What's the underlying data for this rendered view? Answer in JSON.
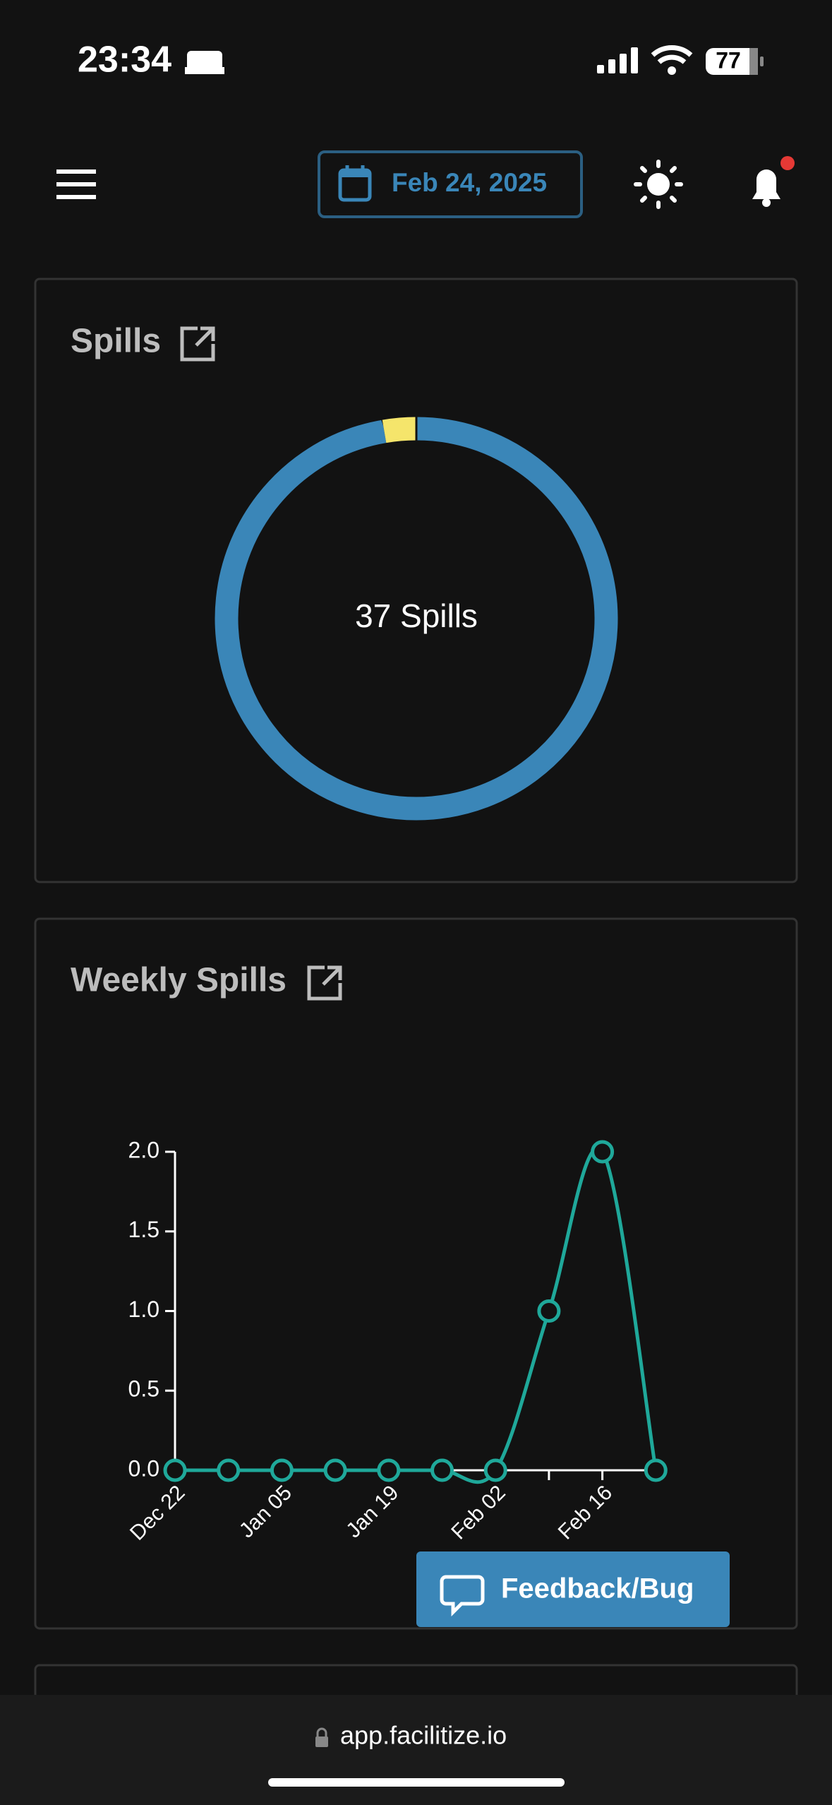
{
  "status_bar": {
    "time": "23:34",
    "battery": "77"
  },
  "header": {
    "date": "Feb 24, 2025"
  },
  "chart_data": [
    {
      "type": "pie",
      "title": "Spills",
      "center_label": "37 Spills",
      "values": [
        36,
        1
      ],
      "colors": [
        "#3a86b8",
        "#f5e56b"
      ]
    },
    {
      "type": "line",
      "title": "Weekly Spills",
      "categories": [
        "Dec 22",
        null,
        "Jan 05",
        null,
        "Jan 19",
        null,
        "Feb 02",
        null,
        "Feb 16",
        null
      ],
      "series": [
        {
          "color": "#1fa89a",
          "values": [
            0,
            0,
            0,
            0,
            0,
            0,
            0,
            1,
            2,
            0
          ]
        }
      ],
      "ylim": [
        0,
        2
      ],
      "yticks": [
        {
          "value": 0,
          "label": "0.0"
        },
        0.5,
        {
          "value": 1,
          "label": "1.0"
        },
        1.5,
        {
          "value": 2,
          "label": "2.0"
        }
      ]
    }
  ],
  "feedback_button": "Feedback/Bug",
  "url": "app.facilitize.io"
}
